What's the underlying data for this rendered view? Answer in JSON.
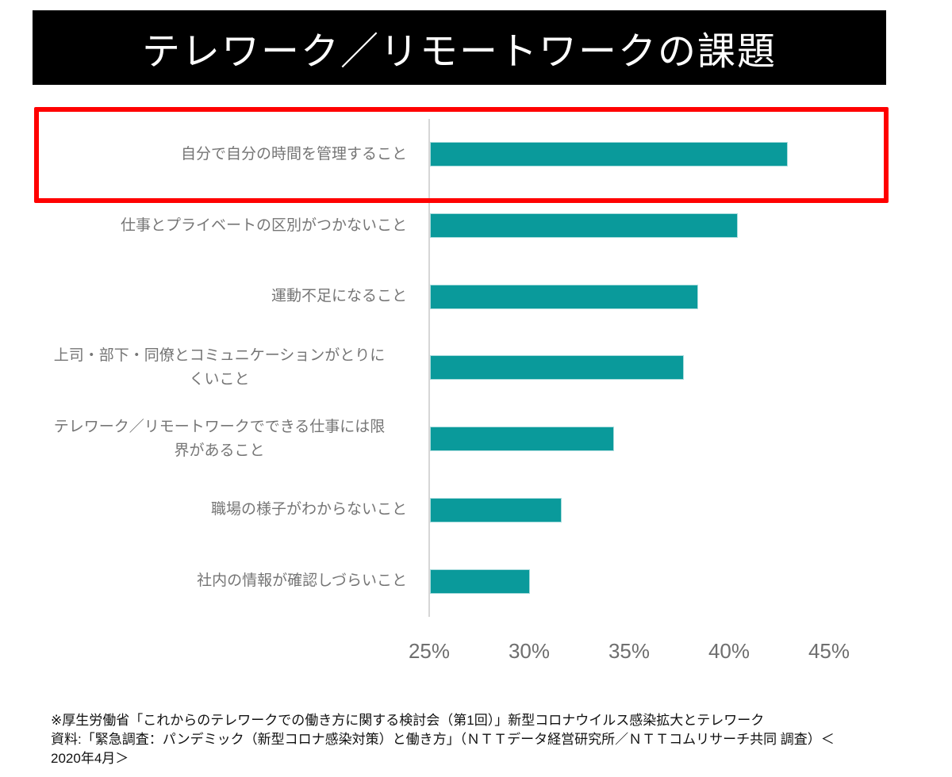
{
  "header": {
    "title": "テレワーク／リモートワークの課題",
    "bg_color": "#000000",
    "text_color": "#ffffff"
  },
  "chart_data": {
    "type": "bar",
    "orientation": "horizontal",
    "title": "テレワーク／リモートワークの課題",
    "categories": [
      "自分で自分の時間を管理すること",
      "仕事とプライベートの区別がつかないこと",
      "運動不足になること",
      "上司・部下・同僚とコミュニケーションがとりにくいこと",
      "テレワーク／リモートワークでできる仕事には限界があること",
      "職場の様子がわからないこと",
      "社内の情報が確認しづらいこと"
    ],
    "category_lines": [
      [
        "自分で自分の時間を管理すること"
      ],
      [
        "仕事とプライベートの区別がつかないこと"
      ],
      [
        "運動不足になること"
      ],
      [
        "上司・部下・同僚とコミュニケーションがとりに",
        "くいこと"
      ],
      [
        "テレワーク／リモートワークでできる仕事には限",
        "界があること"
      ],
      [
        "職場の様子がわからないこと"
      ],
      [
        "社内の情報が確認しづらいこと"
      ]
    ],
    "values": [
      42.9,
      40.4,
      38.4,
      37.7,
      34.2,
      31.6,
      30.0
    ],
    "unit": "%",
    "xlim": [
      25,
      47.5
    ],
    "xticks": [
      25,
      30,
      35,
      40,
      45
    ],
    "xtick_labels": [
      "25%",
      "30%",
      "35%",
      "40%",
      "45%"
    ],
    "grid": false,
    "legend": null,
    "bar_color": "#0a9a9b",
    "bar_border_color": "#aadcdd",
    "label_color": "#757575",
    "axis_line_color": "#d6d6d6",
    "highlighted_category_index": 0,
    "highlight_color": "#ff0000"
  },
  "footer": {
    "lines": [
      "※厚生労働省「これからのテレワークでの働き方に関する検討会（第1回）」新型コロナウイルス感染拡大とテレワーク",
      "資料:「緊急調査：パンデミック（新型コロナ感染対策）と働き方」（ＮＴＴデータ経営研究所／ＮＴＴコムリサーチ共同 調査）＜",
      "2020年4月＞"
    ]
  }
}
